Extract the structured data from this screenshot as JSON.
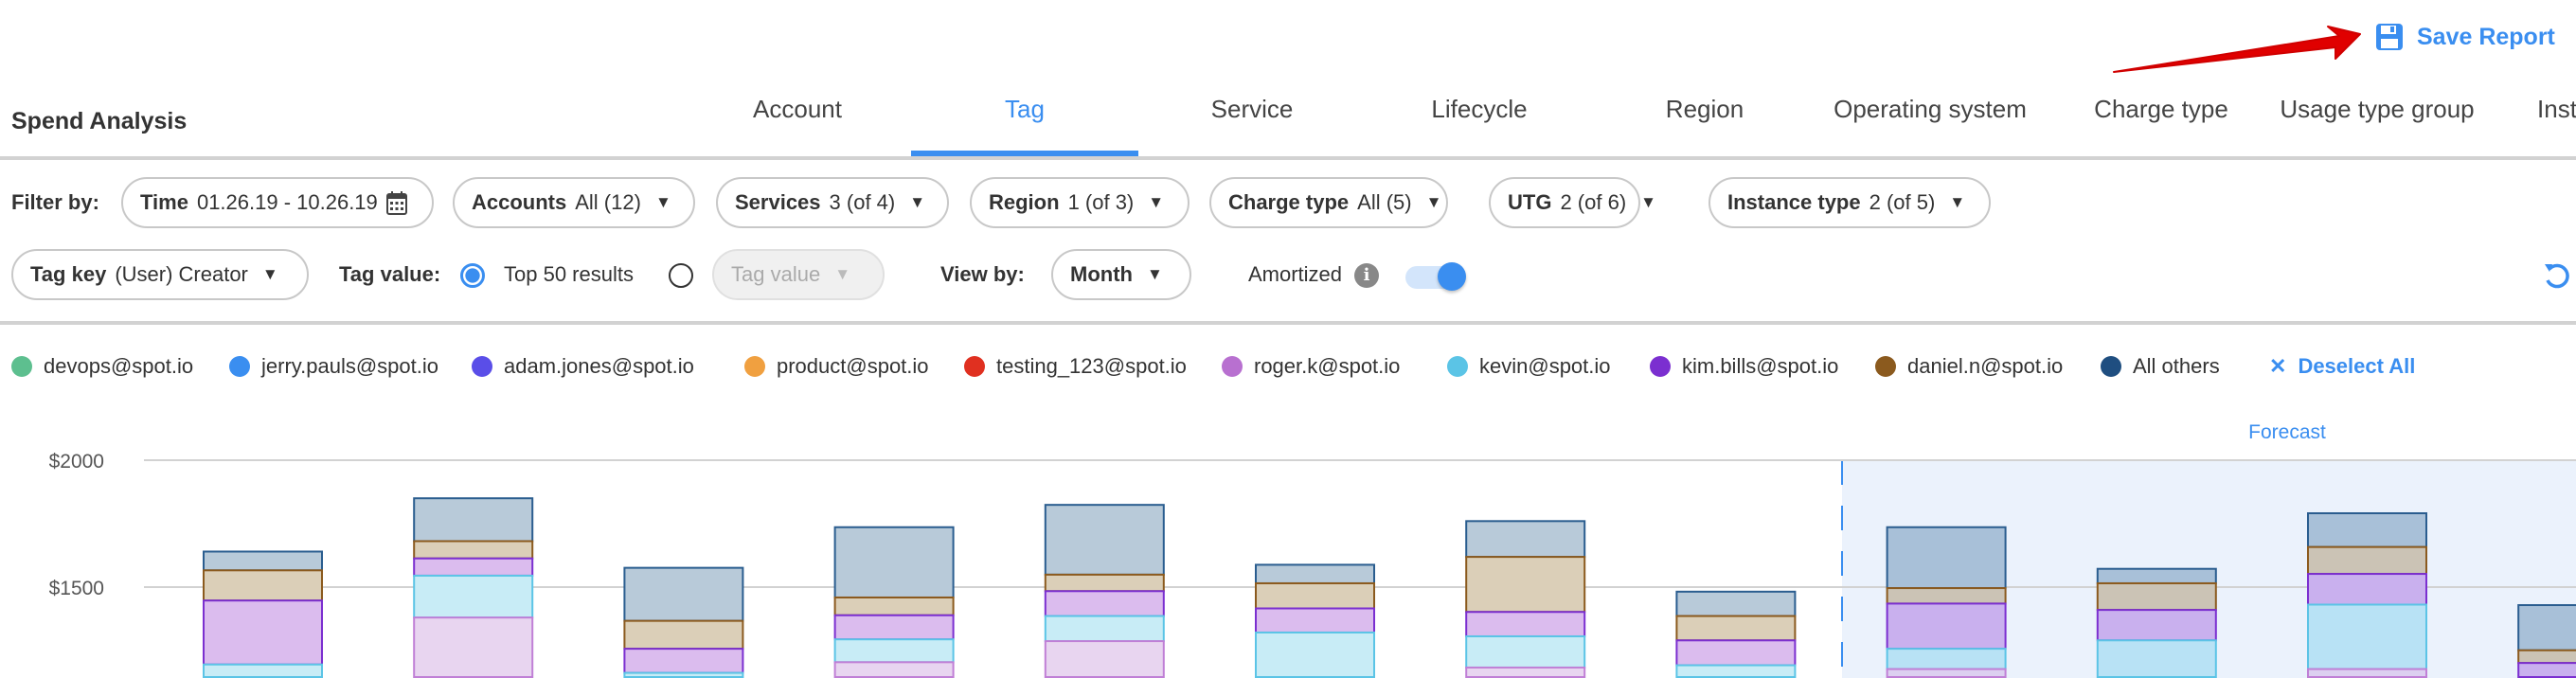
{
  "header": {
    "save_label": "Save Report",
    "title": "Spend Analysis"
  },
  "tabs": [
    {
      "label": "Account"
    },
    {
      "label": "Tag",
      "active": true
    },
    {
      "label": "Service"
    },
    {
      "label": "Lifecycle"
    },
    {
      "label": "Region"
    },
    {
      "label": "Operating system"
    },
    {
      "label": "Charge type"
    },
    {
      "label": "Usage type group"
    },
    {
      "label": "Inst"
    }
  ],
  "filters": {
    "filter_by_label": "Filter by:",
    "time": {
      "label": "Time",
      "value": "01.26.19 - 10.26.19"
    },
    "accounts": {
      "label": "Accounts",
      "value": "All (12)"
    },
    "services": {
      "label": "Services",
      "value": "3 (of 4)"
    },
    "region": {
      "label": "Region",
      "value": "1 (of 3)"
    },
    "charge_type": {
      "label": "Charge type",
      "value": "All (5)"
    },
    "utg": {
      "label": "UTG",
      "value": "2 (of 6)"
    },
    "instance_type": {
      "label": "Instance type",
      "value": "2 (of 5)"
    },
    "tag_key": {
      "label": "Tag key",
      "value": "(User) Creator"
    },
    "tag_value_label": "Tag value:",
    "top_results_label": "Top 50 results",
    "top_results_selected": true,
    "tag_value_placeholder": "Tag value",
    "view_by_label": "View by:",
    "view_by": "Month",
    "amortized_label": "Amortized",
    "amortized_on": true
  },
  "legend": {
    "items": [
      {
        "label": "devops@spot.io",
        "color": "#5dbf8f"
      },
      {
        "label": "jerry.pauls@spot.io",
        "color": "#3a8ef0"
      },
      {
        "label": "adam.jones@spot.io",
        "color": "#5a4ee8"
      },
      {
        "label": "product@spot.io",
        "color": "#f0a040"
      },
      {
        "label": "testing_123@spot.io",
        "color": "#e03020"
      },
      {
        "label": "roger.k@spot.io",
        "color": "#b870d0"
      },
      {
        "label": "kevin@spot.io",
        "color": "#5bc4e6"
      },
      {
        "label": "kim.bills@spot.io",
        "color": "#7b2fd0"
      },
      {
        "label": "daniel.n@spot.io",
        "color": "#8b5a1e"
      },
      {
        "label": "All others",
        "color": "#1f4e80"
      }
    ],
    "deselect_label": "Deselect All"
  },
  "chart_data": {
    "type": "bar",
    "stacked": true,
    "y_ticks": [
      "$2000",
      "$1500"
    ],
    "y_tick_values": [
      2000,
      1500
    ],
    "ylim": [
      1143,
      2200
    ],
    "grid": true,
    "forecast_label": "Forecast",
    "forecast_from_bar": 9,
    "series_order_top_down": [
      "All others",
      "daniel.n@spot.io",
      "kim.bills@spot.io",
      "kevin@spot.io",
      "roger.k@spot.io"
    ],
    "bars": [
      {
        "total": 1640,
        "segments": [
          74,
          119,
          252,
          null
        ]
      },
      {
        "total": 1850,
        "segments": [
          169,
          68,
          68,
          165,
          null
        ]
      },
      {
        "total": 1576,
        "segments": [
          209,
          110,
          95,
          null
        ]
      },
      {
        "total": 1736,
        "segments": [
          277,
          70,
          95,
          90,
          null
        ]
      },
      {
        "total": 1824,
        "segments": [
          275,
          65,
          98,
          99,
          null
        ]
      },
      {
        "total": 1588,
        "segments": [
          73,
          99,
          95,
          null
        ]
      },
      {
        "total": 1760,
        "segments": [
          141,
          217,
          96,
          123,
          null
        ]
      },
      {
        "total": 1482,
        "segments": [
          96,
          96,
          98,
          null
        ]
      },
      {
        "total": 1736,
        "segments": [
          240,
          61,
          178,
          80,
          null
        ]
      },
      {
        "total": 1572,
        "segments": [
          57,
          105,
          120,
          null
        ]
      },
      {
        "total": 1791,
        "segments": [
          133,
          106,
          121,
          254,
          null
        ]
      },
      {
        "total": 1429,
        "segments": [
          178,
          50,
          null
        ]
      }
    ]
  }
}
